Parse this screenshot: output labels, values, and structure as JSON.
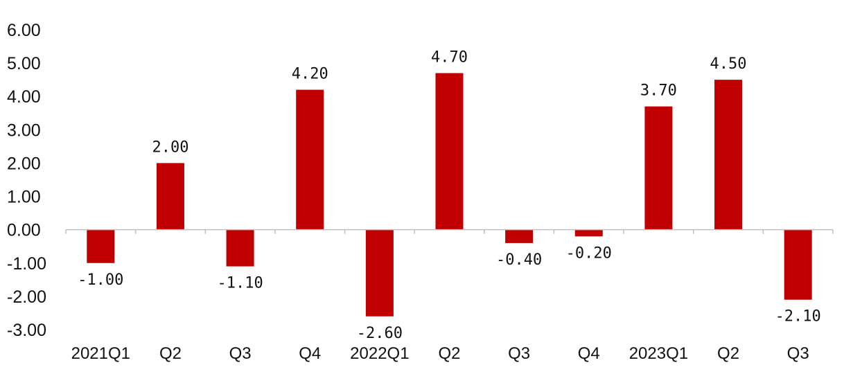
{
  "chart_data": {
    "type": "bar",
    "categories": [
      "2021Q1",
      "Q2",
      "Q3",
      "Q4",
      "2022Q1",
      "Q2",
      "Q3",
      "Q4",
      "2023Q1",
      "Q2",
      "Q3"
    ],
    "values": [
      -1.0,
      2.0,
      -1.1,
      4.2,
      -2.6,
      4.7,
      -0.4,
      -0.2,
      3.7,
      4.5,
      -2.1
    ],
    "value_labels": [
      "-1.00",
      "2.00",
      "-1.10",
      "4.20",
      "-2.60",
      "4.70",
      "-0.40",
      "-0.20",
      "3.70",
      "4.50",
      "-2.10"
    ],
    "y_ticks": [
      "6.00",
      "5.00",
      "4.00",
      "3.00",
      "2.00",
      "1.00",
      "0.00",
      "-1.00",
      "-2.00",
      "-3.00"
    ],
    "ylim": [
      -3,
      6
    ],
    "title": "",
    "xlabel": "",
    "ylabel": "",
    "grid": false,
    "legend": "none",
    "bar_color": "#c00000",
    "axis_color": "#bfbfbf"
  }
}
